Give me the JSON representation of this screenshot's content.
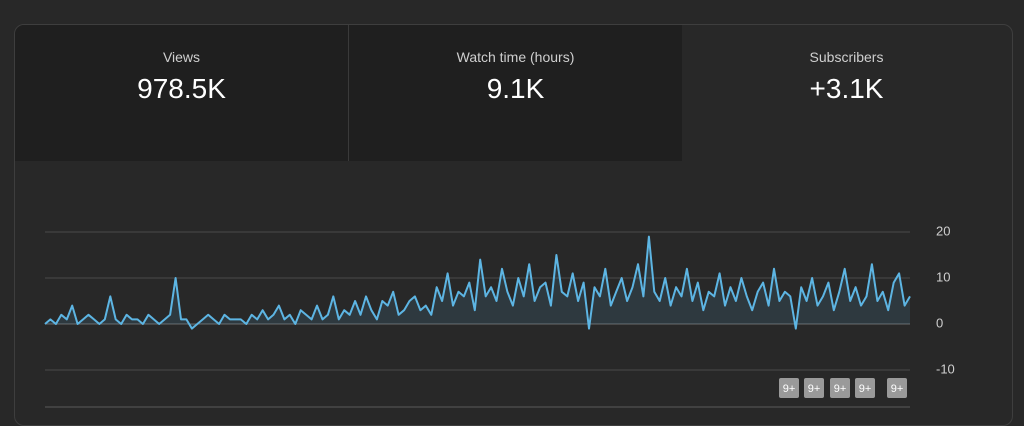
{
  "tabs": [
    {
      "label": "Views",
      "value": "978.5K"
    },
    {
      "label": "Watch time (hours)",
      "value": "9.1K"
    },
    {
      "label": "Subscribers",
      "value": "+3.1K"
    }
  ],
  "chart_data": {
    "type": "line",
    "ylim": [
      -10,
      20
    ],
    "yticks": [
      -10,
      0,
      10,
      20
    ],
    "grid": true,
    "series": [
      {
        "color": "#5db5e3",
        "values": [
          0,
          1,
          0,
          2,
          1,
          4,
          0,
          1,
          2,
          1,
          0,
          1,
          6,
          1,
          0,
          2,
          1,
          1,
          0,
          2,
          1,
          0,
          1,
          2,
          10,
          1,
          1,
          -1,
          0,
          1,
          2,
          1,
          0,
          2,
          1,
          1,
          1,
          0,
          2,
          1,
          3,
          1,
          2,
          4,
          1,
          2,
          0,
          3,
          2,
          1,
          4,
          1,
          2,
          6,
          1,
          3,
          2,
          5,
          2,
          6,
          3,
          1,
          5,
          4,
          7,
          2,
          3,
          5,
          6,
          3,
          4,
          2,
          8,
          5,
          11,
          4,
          7,
          6,
          9,
          3,
          14,
          6,
          8,
          5,
          12,
          7,
          4,
          10,
          6,
          13,
          5,
          8,
          9,
          4,
          15,
          7,
          6,
          11,
          5,
          9,
          -1,
          8,
          6,
          12,
          4,
          7,
          10,
          5,
          8,
          13,
          6,
          19,
          7,
          5,
          10,
          4,
          8,
          6,
          12,
          5,
          9,
          3,
          7,
          6,
          11,
          4,
          8,
          5,
          10,
          6,
          3,
          7,
          9,
          4,
          12,
          5,
          7,
          6,
          -1,
          8,
          5,
          10,
          4,
          6,
          9,
          3,
          7,
          12,
          5,
          8,
          4,
          6,
          13,
          5,
          7,
          3,
          9,
          11,
          4,
          6
        ]
      }
    ]
  },
  "badges": [
    "9+",
    "9+",
    "9+",
    "9+",
    "9+"
  ]
}
